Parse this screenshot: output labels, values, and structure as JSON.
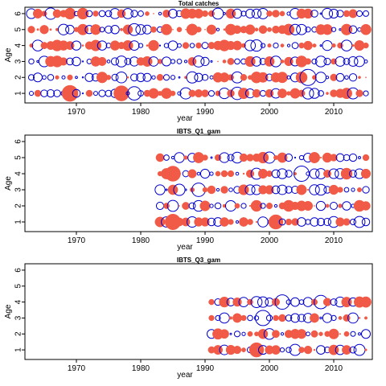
{
  "chart_data": [
    {
      "type": "scatter",
      "title": "Total catches",
      "xlabel": "year",
      "ylabel": "Age",
      "xlim": [
        1962,
        2016
      ],
      "ylim": [
        0.4,
        6.4
      ],
      "xticks": [
        1970,
        1980,
        1990,
        2000,
        2010
      ],
      "yticks": [
        1,
        2,
        3,
        4,
        5,
        6
      ],
      "years": [
        1963,
        2015
      ],
      "ages": [
        1,
        2,
        3,
        4,
        5,
        6
      ],
      "series": [
        {
          "name": "positive",
          "color": "#f05a46",
          "marker": "filled-circle"
        },
        {
          "name": "negative",
          "color": "#0000cc",
          "marker": "open-circle"
        }
      ],
      "highlights": [
        {
          "year": 1969,
          "age": 1,
          "value": 1.0
        },
        {
          "year": 1977,
          "age": 1,
          "value": 0.9
        },
        {
          "year": 2006,
          "age": 2,
          "value": -1.0
        },
        {
          "year": 1979,
          "age": 1,
          "value": -0.7
        },
        {
          "year": 1995,
          "age": 1,
          "value": -0.6
        },
        {
          "year": 1979,
          "age": 5,
          "value": -0.55
        }
      ]
    },
    {
      "type": "scatter",
      "title": "IBTS_Q1_gam",
      "xlabel": "year",
      "ylabel": "Age",
      "xlim": [
        1962,
        2016
      ],
      "ylim": [
        0.4,
        6.4
      ],
      "xticks": [
        1970,
        1980,
        1990,
        2000,
        2010
      ],
      "yticks": [
        1,
        2,
        3,
        4,
        5,
        6
      ],
      "years": [
        1983,
        2015
      ],
      "ages": [
        1,
        2,
        3,
        4,
        5
      ],
      "series": [
        {
          "name": "positive",
          "color": "#f05a46",
          "marker": "filled-circle"
        },
        {
          "name": "negative",
          "color": "#0000cc",
          "marker": "open-circle"
        }
      ],
      "highlights": [
        {
          "year": 1985,
          "age": 1,
          "value": 0.95
        },
        {
          "year": 1985,
          "age": 4,
          "value": 0.9
        },
        {
          "year": 2005,
          "age": 4,
          "value": -0.9
        },
        {
          "year": 2001,
          "age": 1,
          "value": 0.8
        },
        {
          "year": 1989,
          "age": 3,
          "value": -0.7
        }
      ]
    },
    {
      "type": "scatter",
      "title": "IBTS_Q3_gam",
      "xlabel": "year",
      "ylabel": "Age",
      "xlim": [
        1962,
        2016
      ],
      "ylim": [
        0.4,
        6.4
      ],
      "xticks": [
        1970,
        1980,
        1990,
        2000,
        2010
      ],
      "yticks": [
        1,
        2,
        3,
        4,
        5,
        6
      ],
      "years": [
        1991,
        2015
      ],
      "ages": [
        1,
        2,
        3,
        4
      ],
      "series": [
        {
          "name": "positive",
          "color": "#f05a46",
          "marker": "filled-circle"
        },
        {
          "name": "negative",
          "color": "#0000cc",
          "marker": "open-circle"
        }
      ],
      "highlights": [
        {
          "year": 1999,
          "age": 3,
          "value": -0.9
        },
        {
          "year": 2002,
          "age": 4,
          "value": -0.8
        },
        {
          "year": 2008,
          "age": 4,
          "value": -0.7
        },
        {
          "year": 1998,
          "age": 1,
          "value": 0.8
        }
      ]
    }
  ]
}
